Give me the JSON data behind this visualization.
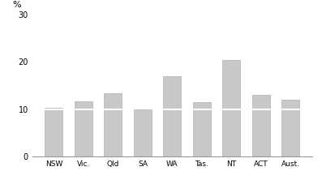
{
  "categories": [
    "NSW",
    "Vic.",
    "Qld",
    "SA",
    "WA",
    "Tas.",
    "NT",
    "ACT",
    "Aust."
  ],
  "values_2008": [
    10.0,
    10.0,
    10.0,
    10.0,
    10.0,
    10.0,
    10.0,
    10.0,
    10.0
  ],
  "values_2013": [
    10.3,
    11.7,
    13.3,
    10.0,
    17.0,
    11.5,
    20.5,
    13.0,
    12.0
  ],
  "bar_color": "#c8c8c8",
  "divider_color": "#ffffff",
  "ylabel": "%",
  "ylim": [
    0,
    30
  ],
  "yticks": [
    0,
    10,
    20,
    30
  ],
  "background_color": "#ffffff",
  "bar_width": 0.6,
  "edge_color": "#b0b0b0"
}
